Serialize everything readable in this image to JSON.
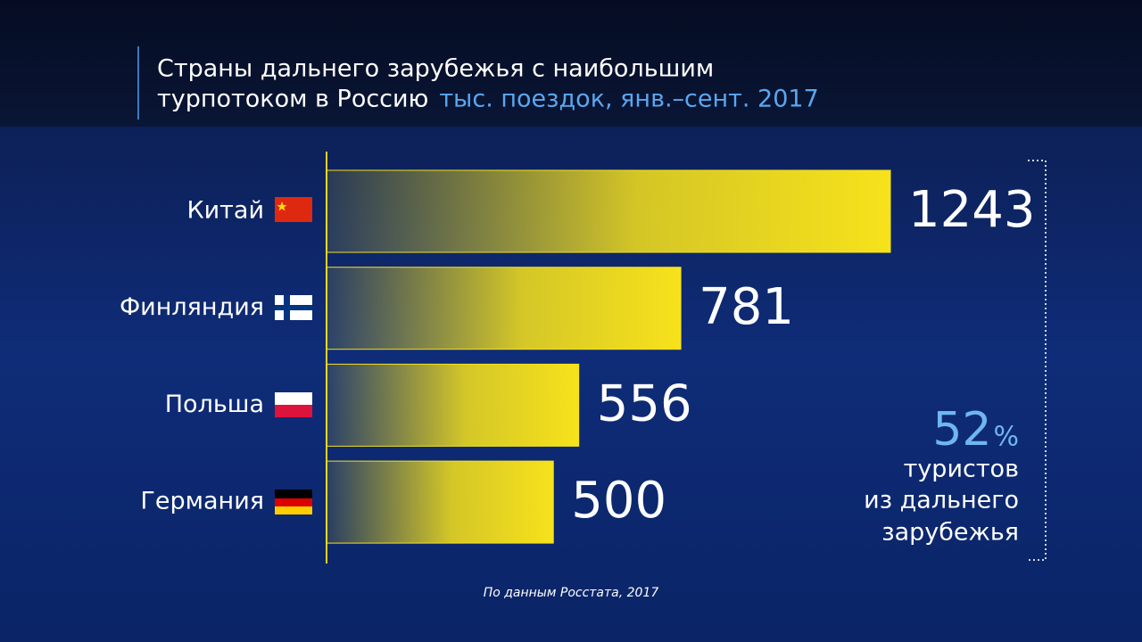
{
  "chart_data": {
    "type": "bar",
    "orientation": "horizontal",
    "title": [
      "Страны дальнего зарубежья с наибольшим",
      "турпотоком в Россию"
    ],
    "subtitle": "тыс. поездок, янв.–сент. 2017",
    "categories": [
      "Китай",
      "Финляндия",
      "Польша",
      "Германия"
    ],
    "values": [
      1243,
      781,
      556,
      500
    ],
    "color": "#f7e21b",
    "callout": {
      "value": "52",
      "unit": "%",
      "lines": [
        "туристов",
        "из дальнего",
        "зарубежья"
      ]
    },
    "source": "По данным Росстата, 2017"
  }
}
